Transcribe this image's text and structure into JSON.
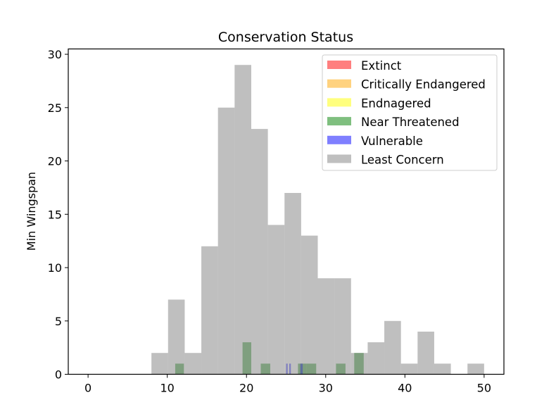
{
  "chart_data": {
    "type": "bar",
    "title": "Conservation Status",
    "xlabel": "",
    "ylabel": "Min Wingspan",
    "xlim": [
      -2.5,
      52.5
    ],
    "ylim": [
      0,
      30.5
    ],
    "xticks": [
      0,
      10,
      20,
      30,
      40,
      50
    ],
    "yticks": [
      0,
      5,
      10,
      15,
      20,
      25,
      30
    ],
    "grid": false,
    "legend_position": "top-right",
    "series": [
      {
        "name": "Extinct",
        "color": "#ff0000",
        "opacity": 0.5,
        "bins": []
      },
      {
        "name": "Critically Endangered",
        "color": "#ffa500",
        "opacity": 0.5,
        "bins": []
      },
      {
        "name": "Endnagered",
        "color": "#ffff00",
        "opacity": 0.5,
        "bins": []
      },
      {
        "name": "Near Threatened",
        "color": "#008000",
        "opacity": 0.5,
        "bins": [
          {
            "x0": 11.0,
            "x1": 12.1,
            "value": 1
          },
          {
            "x0": 19.5,
            "x1": 20.6,
            "value": 3
          },
          {
            "x0": 21.8,
            "x1": 23.0,
            "value": 1
          },
          {
            "x0": 26.5,
            "x1": 27.6,
            "value": 1
          },
          {
            "x0": 27.6,
            "x1": 28.8,
            "value": 1
          },
          {
            "x0": 31.3,
            "x1": 32.5,
            "value": 1
          },
          {
            "x0": 33.6,
            "x1": 34.8,
            "value": 2
          }
        ]
      },
      {
        "name": "Vulnerable",
        "color": "#0000ff",
        "opacity": 0.5,
        "bins": [
          {
            "x0": 25.0,
            "x1": 25.2,
            "value": 1
          },
          {
            "x0": 25.4,
            "x1": 25.6,
            "value": 1
          },
          {
            "x0": 26.8,
            "x1": 27.1,
            "value": 1
          }
        ]
      },
      {
        "name": "Least Concern",
        "color": "#808080",
        "opacity": 0.5,
        "bins": [
          {
            "x0": 8.0,
            "x1": 10.1,
            "value": 2
          },
          {
            "x0": 10.1,
            "x1": 12.2,
            "value": 7
          },
          {
            "x0": 12.2,
            "x1": 14.3,
            "value": 2
          },
          {
            "x0": 14.3,
            "x1": 16.4,
            "value": 12
          },
          {
            "x0": 16.4,
            "x1": 18.5,
            "value": 25
          },
          {
            "x0": 18.5,
            "x1": 20.6,
            "value": 29
          },
          {
            "x0": 20.6,
            "x1": 22.7,
            "value": 23
          },
          {
            "x0": 22.7,
            "x1": 24.8,
            "value": 14
          },
          {
            "x0": 24.8,
            "x1": 26.9,
            "value": 17
          },
          {
            "x0": 26.9,
            "x1": 29.0,
            "value": 13
          },
          {
            "x0": 29.0,
            "x1": 31.1,
            "value": 9
          },
          {
            "x0": 31.1,
            "x1": 33.2,
            "value": 9
          },
          {
            "x0": 33.2,
            "x1": 35.3,
            "value": 2
          },
          {
            "x0": 35.3,
            "x1": 37.4,
            "value": 3
          },
          {
            "x0": 37.4,
            "x1": 39.5,
            "value": 5
          },
          {
            "x0": 39.5,
            "x1": 41.6,
            "value": 1
          },
          {
            "x0": 41.6,
            "x1": 43.7,
            "value": 4
          },
          {
            "x0": 43.7,
            "x1": 45.8,
            "value": 1
          },
          {
            "x0": 45.8,
            "x1": 47.9,
            "value": 0
          },
          {
            "x0": 47.9,
            "x1": 50.0,
            "value": 1
          }
        ]
      }
    ]
  }
}
